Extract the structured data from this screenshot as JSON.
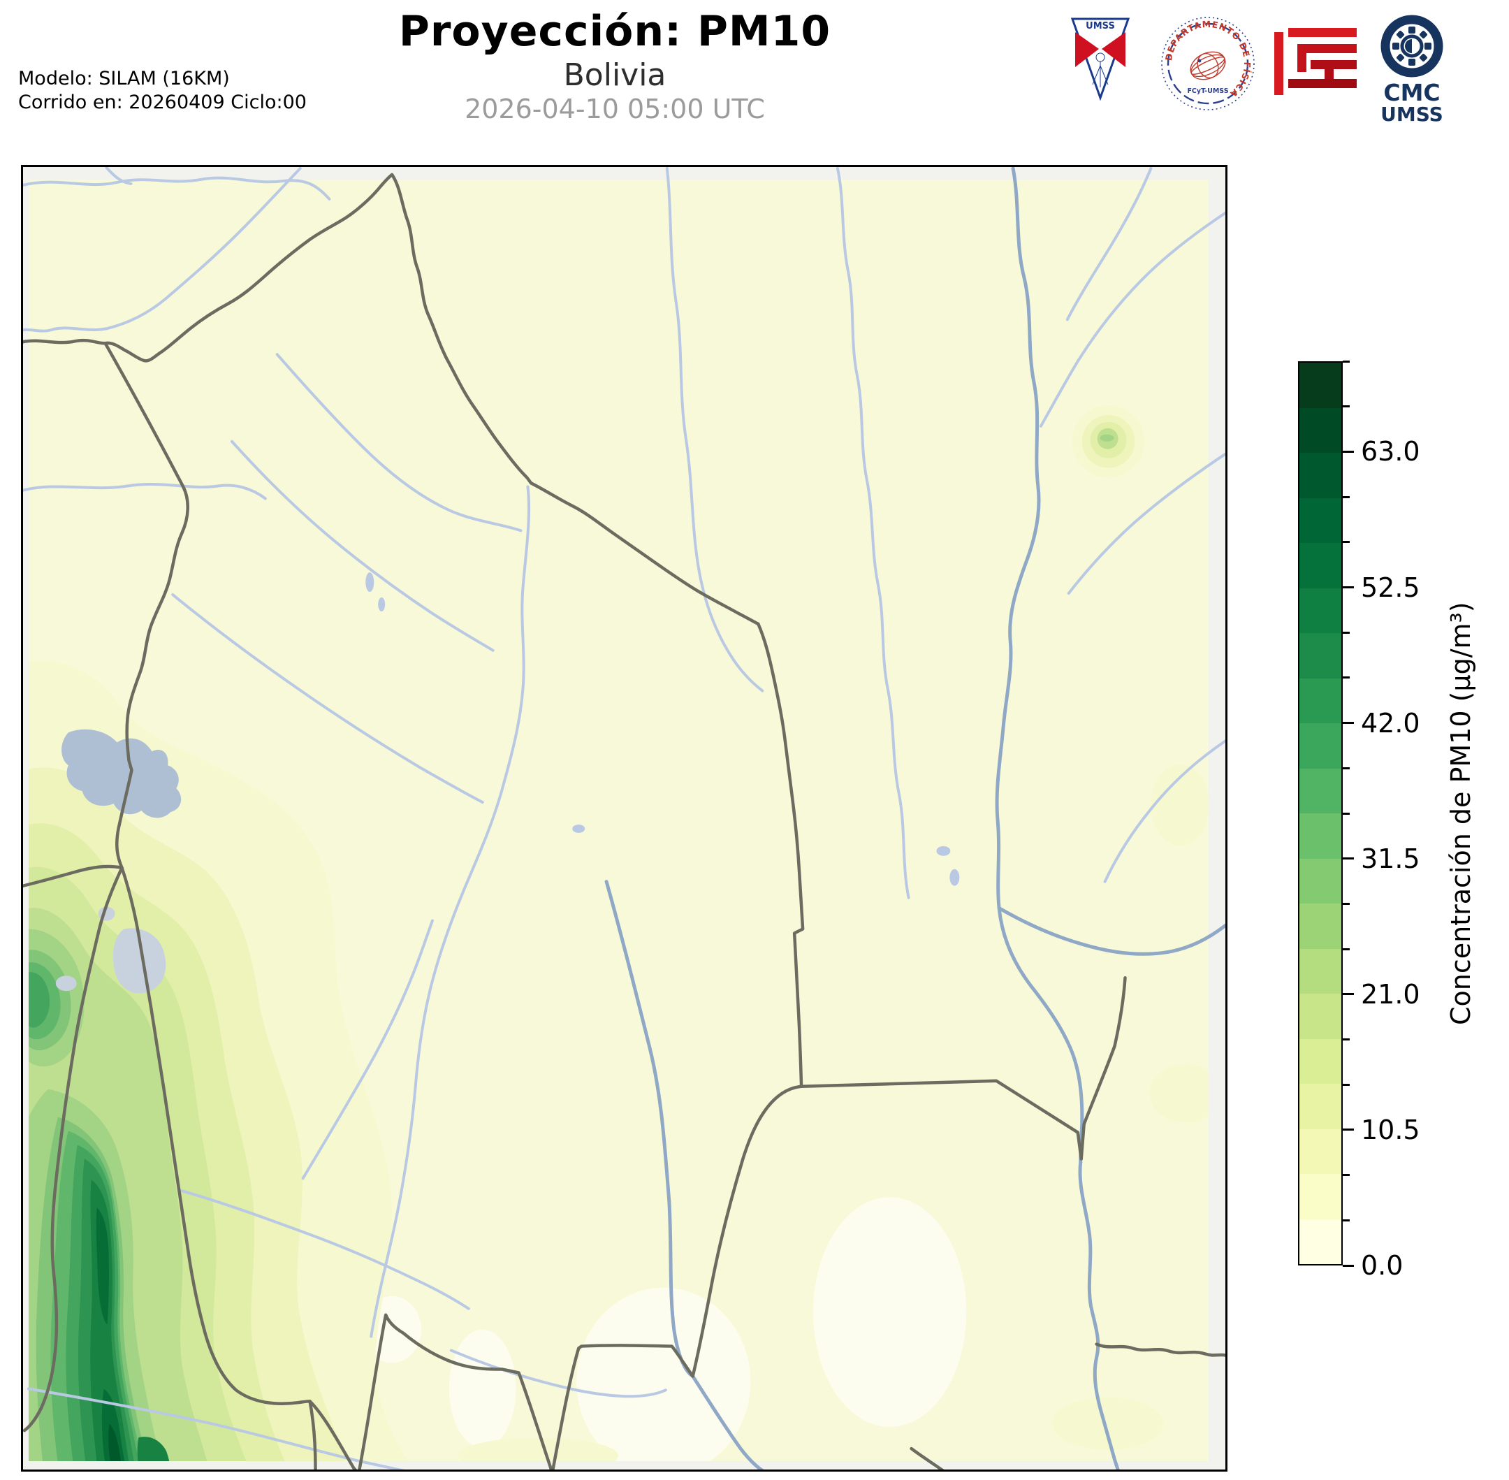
{
  "header": {
    "title": "Proyección: PM10",
    "subtitle": "Bolivia",
    "timestamp": "2026-04-10 05:00 UTC",
    "model_line1": "Modelo: SILAM (16KM)",
    "model_line2": "Corrido en: 20260409 Ciclo:00"
  },
  "logos": {
    "umss_pennant_label": "UMSS",
    "fisica_seal_arc_text": "DEPARTAMENTO DE FÍSICA",
    "fisica_seal_bottom_text": "FCyT-UMSS",
    "cmc_title": "CMC",
    "cmc_subtitle": "UMSS"
  },
  "colorbar": {
    "label": "Concentración de PM10 (µg/m³)",
    "min": 0.0,
    "max": 70.0,
    "bin_size": 3.5,
    "major_tick_labels": [
      "0.0",
      "10.5",
      "21.0",
      "31.5",
      "42.0",
      "52.5",
      "63.0"
    ],
    "major_tick_values": [
      0.0,
      10.5,
      21.0,
      31.5,
      42.0,
      52.5,
      63.0
    ],
    "colors_bottom_to_top": [
      "#ffffe3",
      "#fbfdc9",
      "#f3f9b4",
      "#e8f4a3",
      "#daee96",
      "#c8e689",
      "#b3dd7e",
      "#9cd377",
      "#83ca70",
      "#6ac06b",
      "#51b465",
      "#3ba75c",
      "#2a9a53",
      "#1d8c4a",
      "#107f42",
      "#05723b",
      "#006635",
      "#00592e",
      "#004b26",
      "#063b1c"
    ]
  },
  "map": {
    "region": "Bolivia",
    "colors": {
      "background": "#f8f9d8",
      "margin": "#f2f2ee",
      "lowzone": "#fdfdef",
      "river": "#b9c9e3",
      "river_major": "#8fa8c6",
      "border": "#6b6b60",
      "lake": "#aebfd4",
      "lake_light": "#c8d2df",
      "frame": "#000000"
    },
    "contour_palette": [
      "#f6f9d0",
      "#eef4bb",
      "#e2efa8",
      "#d2e89b",
      "#bede90",
      "#a3d385",
      "#82c578",
      "#60b76b",
      "#44a65e",
      "#2d9451",
      "#188242",
      "#076d36",
      "#00592b"
    ]
  }
}
